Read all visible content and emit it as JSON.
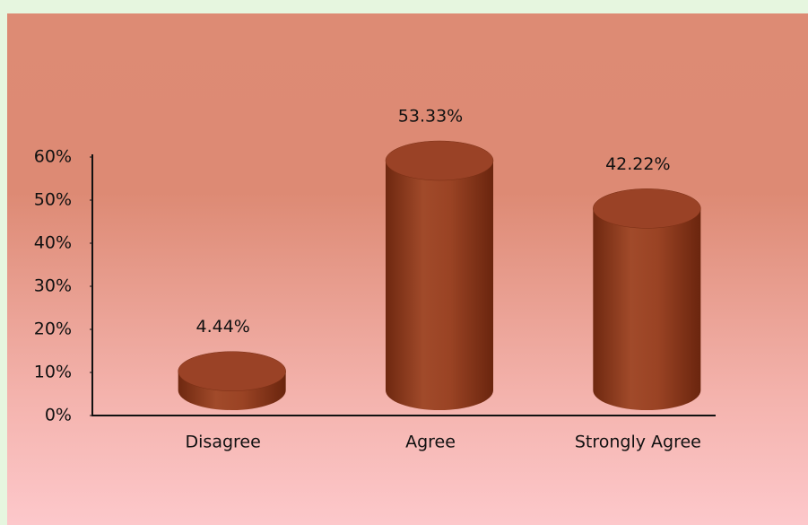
{
  "chart_data": {
    "type": "bar",
    "categories": [
      "Disagree",
      "Agree",
      "Strongly Agree"
    ],
    "values": [
      4.44,
      53.33,
      42.22
    ],
    "value_labels": [
      "4.44%",
      "53.33%",
      "42.22%"
    ],
    "color": "#9a4226",
    "ylim": [
      0,
      60
    ],
    "yticks": [
      {
        "value": 0,
        "label": "0%"
      },
      {
        "value": 10,
        "label": "10%"
      },
      {
        "value": 20,
        "label": "20%"
      },
      {
        "value": 30,
        "label": "30%"
      },
      {
        "value": 40,
        "label": "40%"
      },
      {
        "value": 50,
        "label": "50%"
      },
      {
        "value": 60,
        "label": "60%"
      }
    ],
    "grid": false
  }
}
